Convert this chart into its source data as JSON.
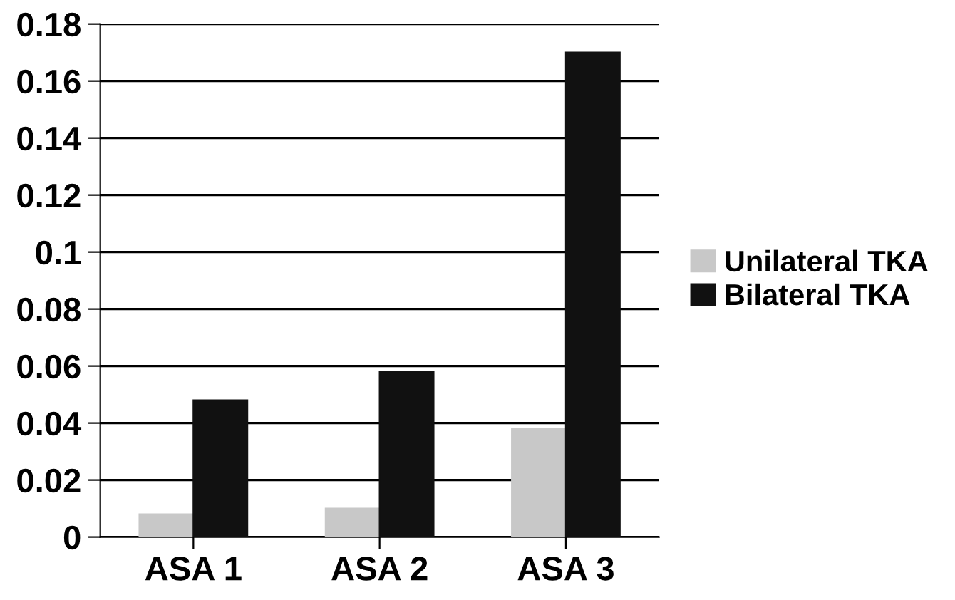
{
  "chart_data": {
    "type": "bar",
    "categories": [
      "ASA 1",
      "ASA 2",
      "ASA 3"
    ],
    "series": [
      {
        "name": "Unilateral TKA",
        "color": "#c8c8c8",
        "values": [
          0.008,
          0.01,
          0.038
        ]
      },
      {
        "name": "Bilateral TKA",
        "color": "#111111",
        "values": [
          0.048,
          0.058,
          0.17
        ]
      }
    ],
    "ylim": [
      0,
      0.18
    ],
    "yticks": [
      0,
      0.02,
      0.04,
      0.06,
      0.08,
      0.1,
      0.12,
      0.14,
      0.16,
      0.18
    ],
    "grid": "y",
    "legend": "right"
  }
}
